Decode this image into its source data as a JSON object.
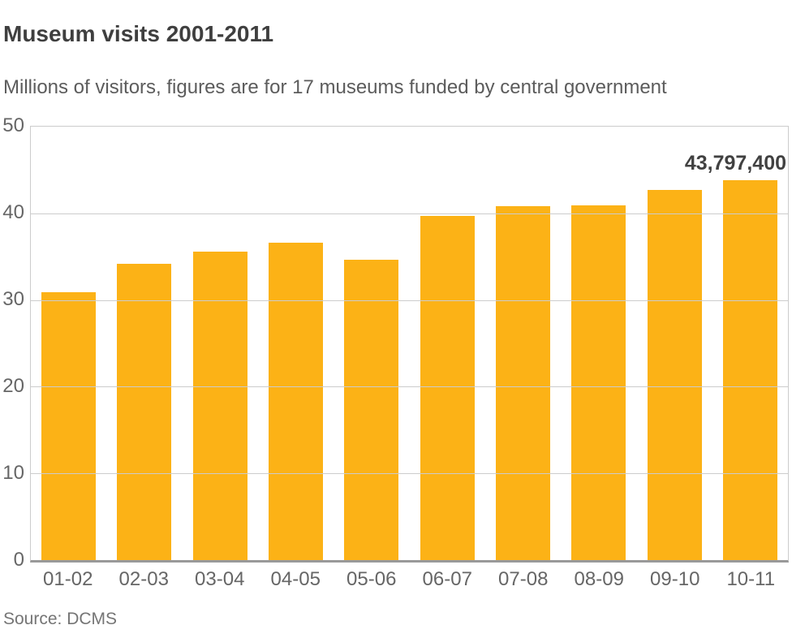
{
  "header": {
    "title": "Museum visits 2001-2011",
    "subtitle": "Millions of visitors, figures are for 17 museums funded by central government"
  },
  "chart_data": {
    "type": "bar",
    "title": "Museum visits 2001-2011",
    "subtitle": "Millions of visitors, figures are for 17 museums funded by central government",
    "categories": [
      "01-02",
      "02-03",
      "03-04",
      "04-05",
      "05-06",
      "06-07",
      "07-08",
      "08-09",
      "09-10",
      "10-11"
    ],
    "values": [
      30.9,
      34.2,
      35.6,
      36.6,
      34.6,
      39.7,
      40.8,
      40.9,
      42.7,
      43.8
    ],
    "ylabel": "Millions of visitors",
    "xlabel": "",
    "ylim": [
      0,
      50
    ],
    "yticks": [
      0,
      10,
      20,
      30,
      40,
      50
    ],
    "grid": "horizontal",
    "legend_position": "none",
    "annotation": {
      "text": "43,797,400",
      "target_category": "10-11",
      "target_value": 43.8
    },
    "colors": {
      "bar": "#FCB216",
      "gridline": "#cccccc",
      "baseline": "#999999",
      "axis_label": "#666666",
      "title": "#3f3f3f",
      "subtitle": "#5c5c5c",
      "annotation": "#414141",
      "source": "#757575"
    }
  },
  "footer": {
    "source": "Source: DCMS"
  }
}
